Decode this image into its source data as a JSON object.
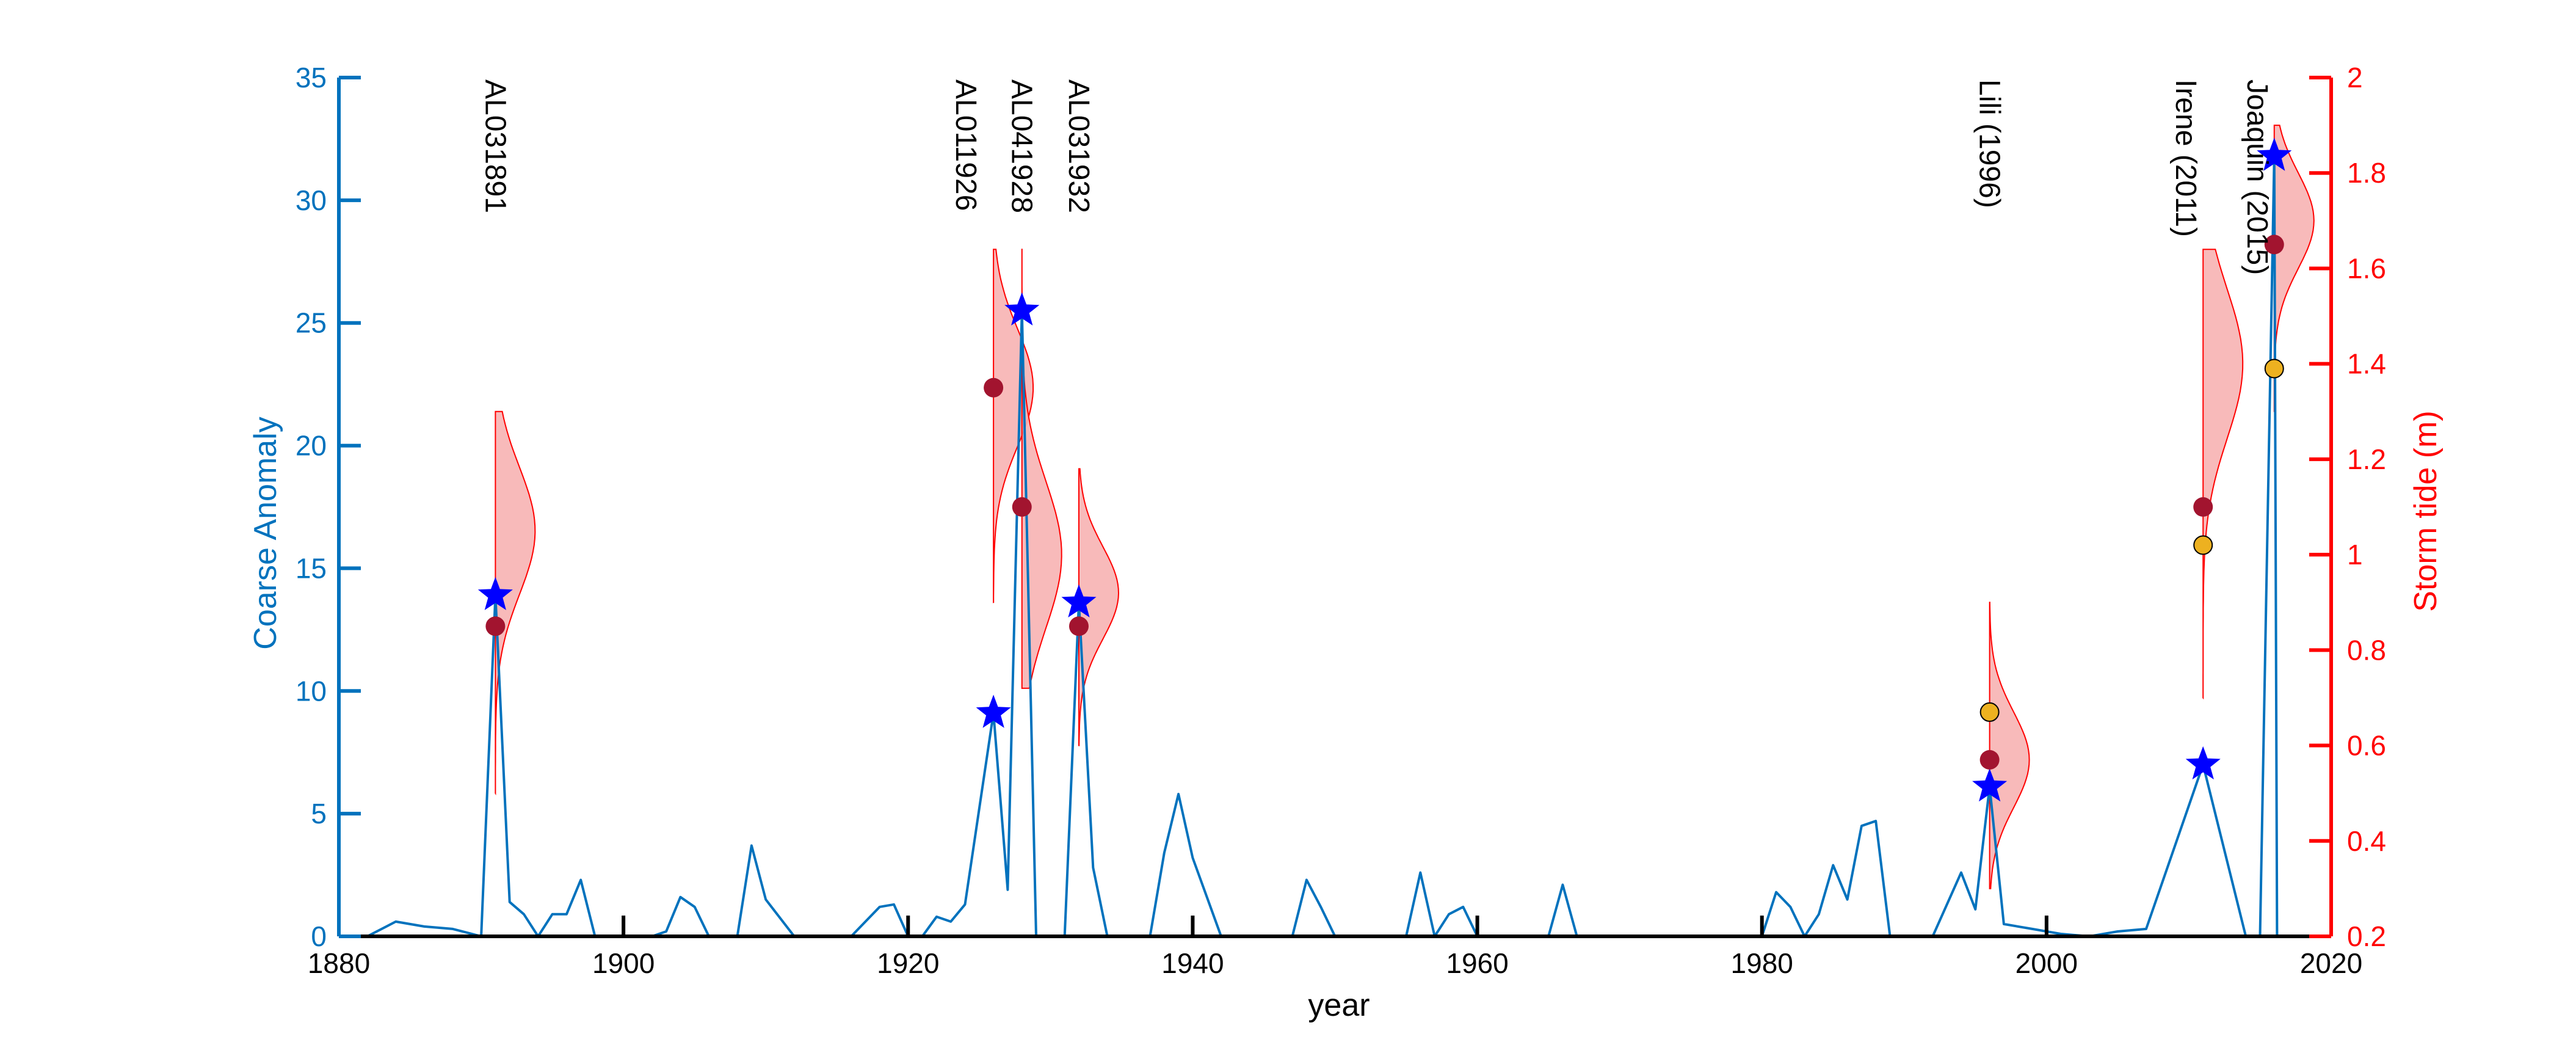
{
  "chart_data": {
    "type": "line",
    "xlabel": "year",
    "ylabel_left": "Coarse Anomaly",
    "ylabel_right": "Storm tide (m)",
    "xlim": [
      1880,
      2020
    ],
    "ylim_left": [
      0,
      35
    ],
    "ylim_right": [
      0.2,
      2.0
    ],
    "x_ticks": [
      "1880",
      "1900",
      "1920",
      "1940",
      "1960",
      "1980",
      "2000",
      "2020"
    ],
    "y_left_ticks": [
      "0",
      "5",
      "10",
      "15",
      "20",
      "25",
      "30",
      "35"
    ],
    "y_right_ticks": [
      "0.2",
      "0.4",
      "0.6",
      "0.8",
      "1",
      "1.2",
      "1.4",
      "1.6",
      "1.8",
      "2"
    ],
    "colors": {
      "left_axis": "#0072BD",
      "right_axis": "#FF0000",
      "anomaly_line": "#0072BD",
      "star": "#0000FF",
      "modeled_dot": "#A2142F",
      "observed_dot": "#EDB120",
      "density_fill": "#F7B3B3",
      "density_line": "#FF0000"
    },
    "anomaly_series": {
      "x": [
        1880,
        1882,
        1884,
        1886,
        1888,
        1890,
        1891,
        1892,
        1893,
        1894,
        1895,
        1896,
        1897,
        1898,
        1900,
        1902,
        1903,
        1904,
        1905,
        1906,
        1907,
        1908,
        1909,
        1910,
        1912,
        1914,
        1916,
        1917,
        1918,
        1919,
        1920,
        1921,
        1922,
        1923,
        1924,
        1926,
        1927,
        1928,
        1929,
        1930,
        1931,
        1932,
        1933,
        1934,
        1935,
        1936,
        1937,
        1938,
        1939,
        1940,
        1942,
        1944,
        1946,
        1947,
        1948,
        1949,
        1950,
        1952,
        1954,
        1955,
        1956,
        1957,
        1958,
        1959,
        1960,
        1962,
        1964,
        1965,
        1966,
        1967,
        1968,
        1970,
        1975,
        1979,
        1980,
        1981,
        1982,
        1983,
        1984,
        1985,
        1986,
        1987,
        1988,
        1989,
        1990,
        1992,
        1993,
        1994,
        1995,
        1996,
        1997,
        1999,
        2001,
        2003,
        2005,
        2007,
        2011,
        2014,
        2015,
        2016,
        2016.2,
        2020
      ],
      "y": [
        0,
        0,
        0.6,
        0.4,
        0.3,
        0,
        13.9,
        1.4,
        0.9,
        0,
        0.9,
        0.9,
        2.3,
        0,
        0,
        0,
        0.2,
        1.6,
        1.2,
        0,
        0,
        0,
        3.7,
        1.5,
        0,
        0,
        0,
        0.6,
        1.2,
        1.3,
        0,
        0,
        0.8,
        0.6,
        1.3,
        9.1,
        1.9,
        25.5,
        0,
        0,
        0,
        13.6,
        2.8,
        0,
        0,
        0,
        0,
        3.4,
        5.8,
        3.2,
        0,
        0,
        0,
        0,
        2.3,
        1.2,
        0,
        0,
        0,
        0,
        2.6,
        0,
        0.9,
        1.2,
        0,
        0,
        0,
        0,
        2.1,
        0,
        0,
        0,
        0,
        0,
        0,
        1.8,
        1.2,
        0,
        0.9,
        2.9,
        1.5,
        4.5,
        4.7,
        0,
        0,
        0,
        1.3,
        2.6,
        1.1,
        6.1,
        0.5,
        0.3,
        0.1,
        0,
        0.2,
        0.3,
        7.0,
        0,
        0,
        31.8,
        0,
        0
      ]
    },
    "events": [
      {
        "label": "AL031891",
        "year": 1891,
        "anomaly": 13.9,
        "modeled_tide": 0.85,
        "observed_tide": null,
        "range": [
          0.5,
          1.3
        ],
        "mode": 1.05
      },
      {
        "label": "AL011926",
        "year": 1926,
        "anomaly": 9.1,
        "modeled_tide": 1.35,
        "observed_tide": null,
        "range": [
          0.9,
          1.64
        ],
        "mode": 1.35
      },
      {
        "label": "AL041928",
        "year": 1928,
        "anomaly": 25.5,
        "modeled_tide": 1.1,
        "observed_tide": null,
        "range": [
          0.72,
          1.64
        ],
        "mode": 1.0
      },
      {
        "label": "AL031932",
        "year": 1932,
        "anomaly": 13.6,
        "modeled_tide": 0.85,
        "observed_tide": null,
        "range": [
          0.6,
          1.18
        ],
        "mode": 0.92
      },
      {
        "label": "Lili (1996)",
        "year": 1996,
        "anomaly": 6.1,
        "modeled_tide": 0.57,
        "observed_tide": 0.67,
        "range": [
          0.3,
          0.9
        ],
        "mode": 0.57
      },
      {
        "label": "Irene (2011)",
        "year": 2011,
        "anomaly": 7.0,
        "modeled_tide": 1.1,
        "observed_tide": 1.02,
        "range": [
          0.7,
          1.64
        ],
        "mode": 1.4
      },
      {
        "label": "Joaquin (2015)",
        "year": 2016,
        "anomaly": 31.8,
        "modeled_tide": 1.65,
        "observed_tide": 1.39,
        "range": [
          1.3,
          1.9
        ],
        "mode": 1.7
      }
    ]
  }
}
